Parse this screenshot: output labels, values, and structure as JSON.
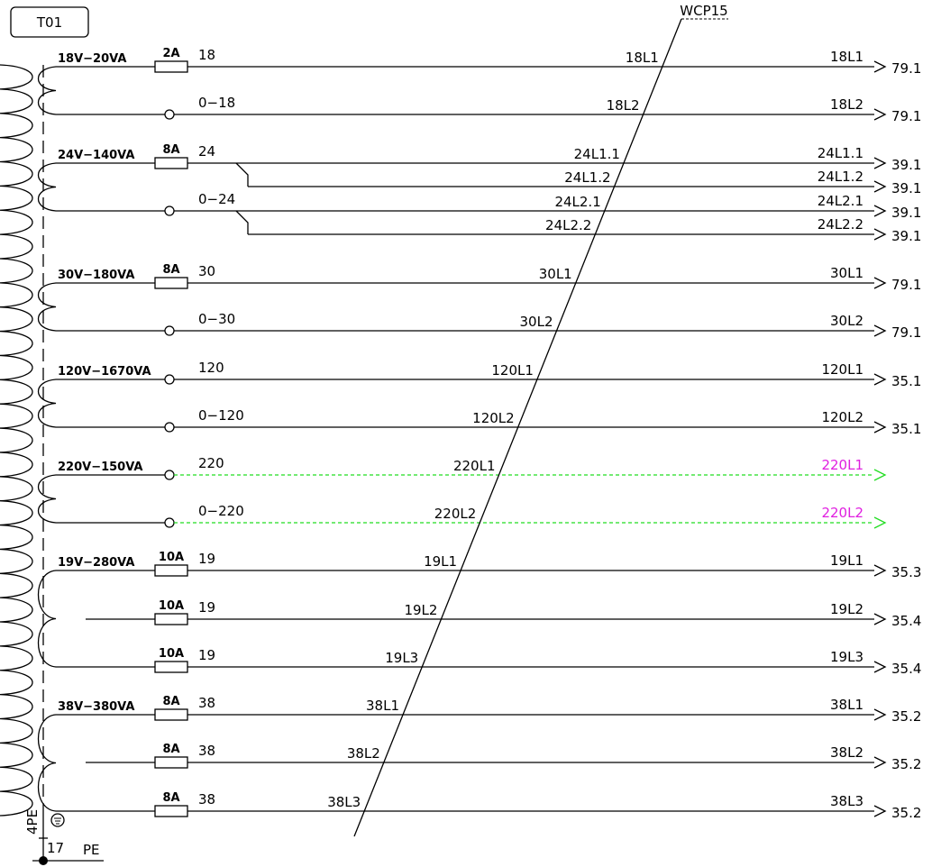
{
  "component": "T01",
  "cable": "WCP15",
  "earth": {
    "terminal_label": "4PE",
    "terminal_no": "17",
    "conductor": "PE"
  },
  "windings": [
    {
      "rating": "18V-20VA",
      "lines": [
        {
          "fuse": "2A",
          "label": "18",
          "wire": "18L1",
          "target": "79.1"
        },
        {
          "fuse": "",
          "label": "0-18",
          "wire": "18L2",
          "target": "79.1"
        }
      ]
    },
    {
      "rating": "24V-140VA",
      "lines": [
        {
          "fuse": "8A",
          "label": "24",
          "wire": "24L1.1",
          "target": "39.1"
        },
        {
          "fuse": "",
          "label": "",
          "wire": "24L1.2",
          "target": "39.1"
        },
        {
          "fuse": "",
          "label": "0-24",
          "wire": "24L2.1",
          "target": "39.1"
        },
        {
          "fuse": "",
          "label": "",
          "wire": "24L2.2",
          "target": "39.1"
        }
      ]
    },
    {
      "rating": "30V-180VA",
      "lines": [
        {
          "fuse": "8A",
          "label": "30",
          "wire": "30L1",
          "target": "79.1"
        },
        {
          "fuse": "",
          "label": "0-30",
          "wire": "30L2",
          "target": "79.1"
        }
      ]
    },
    {
      "rating": "120V-1670VA",
      "lines": [
        {
          "fuse": "",
          "label": "120",
          "wire": "120L1",
          "target": "35.1"
        },
        {
          "fuse": "",
          "label": "0-120",
          "wire": "120L2",
          "target": "35.1"
        }
      ]
    },
    {
      "rating": "220V-150VA",
      "lines": [
        {
          "fuse": "",
          "label": "220",
          "wire": "220L1",
          "target": ""
        },
        {
          "fuse": "",
          "label": "0-220",
          "wire": "220L2",
          "target": ""
        }
      ]
    },
    {
      "rating": "19V-280VA",
      "lines": [
        {
          "fuse": "10A",
          "label": "19",
          "wire": "19L1",
          "target": "35.3"
        },
        {
          "fuse": "10A",
          "label": "19",
          "wire": "19L2",
          "target": "35.4"
        },
        {
          "fuse": "10A",
          "label": "19",
          "wire": "19L3",
          "target": "35.4"
        }
      ]
    },
    {
      "rating": "38V-380VA",
      "lines": [
        {
          "fuse": "8A",
          "label": "38",
          "wire": "38L1",
          "target": "35.2"
        },
        {
          "fuse": "8A",
          "label": "38",
          "wire": "38L2",
          "target": "35.2"
        },
        {
          "fuse": "8A",
          "label": "38",
          "wire": "38L3",
          "target": "35.2"
        }
      ]
    }
  ]
}
